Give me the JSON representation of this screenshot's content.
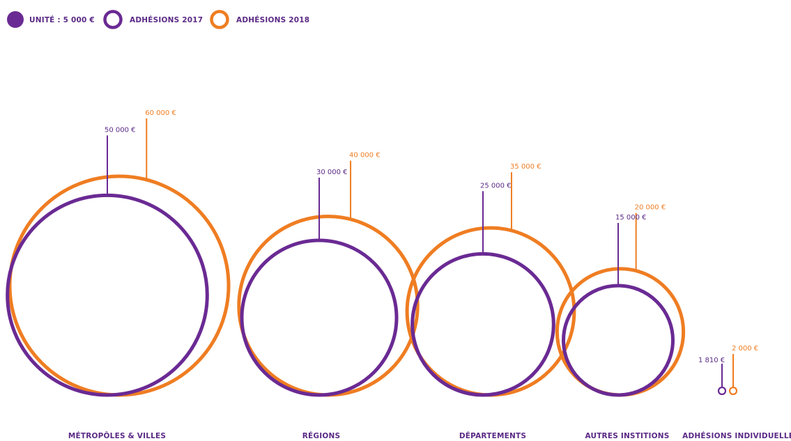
{
  "chart_data": {
    "type": "bubble",
    "legend": {
      "unit_label": "UNITÉ : 5 000 €",
      "series": [
        {
          "name": "ADHÉSIONS 2017",
          "color": "#6a2a93"
        },
        {
          "name": "ADHÉSIONS 2018",
          "color": "#ef7d22"
        }
      ],
      "placement": "top-left"
    },
    "categories": [
      {
        "label": "MÉTROPÔLES & VILLES",
        "value_2017": 50000,
        "value_2018": 60000,
        "label_2017": "50 000 €",
        "label_2018": "60 000 €"
      },
      {
        "label": "RÉGIONS",
        "value_2017": 30000,
        "value_2018": 40000,
        "label_2017": "30 000 €",
        "label_2018": "40 000 €"
      },
      {
        "label": "DÉPARTEMENTS",
        "value_2017": 25000,
        "value_2018": 35000,
        "label_2017": "25 000 €",
        "label_2018": "35 000 €"
      },
      {
        "label": "AUTRES INSTITIONS",
        "value_2017": 15000,
        "value_2018": 20000,
        "label_2017": "15 000 €",
        "label_2018": "20 000 €"
      },
      {
        "label": "ADHÉSIONS INDIVIDUELLES",
        "value_2017": 1810,
        "value_2018": 2000,
        "label_2017": "1 810 €",
        "label_2018": "2 000 €"
      }
    ],
    "colors": {
      "2017": "#6a2a93",
      "2018": "#ef7d22",
      "text": "#5b2a86"
    }
  }
}
